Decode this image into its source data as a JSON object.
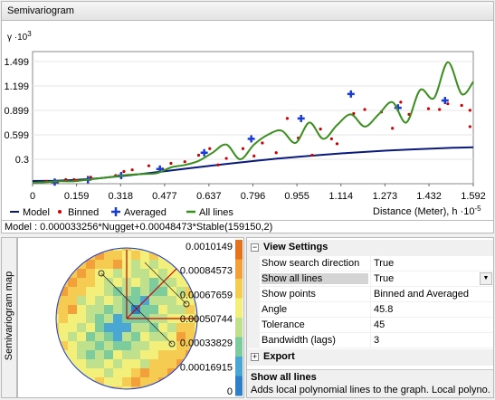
{
  "panel_title": "Semivariogram",
  "model_text": "Model : 0.000033256*Nugget+0.00048473*Stable(159150,2)",
  "map_side_label": "Semivariogram map",
  "colors": {
    "model": "#0a1a7a",
    "binned": "#cc0000",
    "averaged": "#1a3ad6",
    "all_lines": "#3a8f1e"
  },
  "chart_data": {
    "type": "line",
    "ylabel": "γ ·10",
    "ylabel_exp": "3",
    "xlabel": "Distance (Meter), h ·10",
    "xlabel_exp": "-5",
    "x_ticks": [
      "0",
      "0.159",
      "0.318",
      "0.477",
      "0.637",
      "0.796",
      "0.955",
      "1.114",
      "1.273",
      "1.432",
      "1.592"
    ],
    "y_ticks": [
      "0.3",
      "0.599",
      "0.899",
      "1.199",
      "1.499"
    ],
    "xlim": [
      0,
      1.592
    ],
    "ylim": [
      0,
      1.62
    ],
    "series": [
      {
        "name": "Model",
        "type": "line",
        "x": [
          0,
          0.08,
          0.16,
          0.24,
          0.32,
          0.4,
          0.48,
          0.56,
          0.64,
          0.72,
          0.8,
          0.88,
          0.96,
          1.04,
          1.12,
          1.2,
          1.28,
          1.36,
          1.44,
          1.52,
          1.592
        ],
        "y": [
          0.033,
          0.037,
          0.048,
          0.067,
          0.093,
          0.122,
          0.154,
          0.187,
          0.219,
          0.25,
          0.279,
          0.306,
          0.331,
          0.353,
          0.373,
          0.39,
          0.406,
          0.419,
          0.43,
          0.44,
          0.447
        ]
      },
      {
        "name": "Binned",
        "type": "scatter",
        "x": [
          0.05,
          0.09,
          0.12,
          0.15,
          0.16,
          0.21,
          0.3,
          0.33,
          0.36,
          0.42,
          0.47,
          0.5,
          0.55,
          0.6,
          0.64,
          0.67,
          0.7,
          0.76,
          0.8,
          0.83,
          0.88,
          0.92,
          0.96,
          1.01,
          1.04,
          1.08,
          1.1,
          1.16,
          1.2,
          1.26,
          1.3,
          1.33,
          1.36,
          1.43,
          1.47,
          1.5,
          1.55,
          1.58,
          1.58
        ],
        "y": [
          0.03,
          0.02,
          0.05,
          0.05,
          0.04,
          0.08,
          0.1,
          0.15,
          0.17,
          0.22,
          0.18,
          0.25,
          0.27,
          0.35,
          0.43,
          0.23,
          0.31,
          0.43,
          0.34,
          0.5,
          0.38,
          0.8,
          0.56,
          0.35,
          0.67,
          0.55,
          0.49,
          0.86,
          0.91,
          0.88,
          0.68,
          1.0,
          0.85,
          0.92,
          0.91,
          0.98,
          0.96,
          0.9,
          0.7
        ]
      },
      {
        "name": "Averaged",
        "type": "scatter",
        "x": [
          0.08,
          0.2,
          0.32,
          0.46,
          0.62,
          0.79,
          0.97,
          1.15,
          1.32,
          1.49
        ],
        "y": [
          0.02,
          0.05,
          0.1,
          0.18,
          0.38,
          0.55,
          0.8,
          1.1,
          0.93,
          1.02
        ]
      },
      {
        "name": "All lines",
        "type": "line",
        "x": [
          0,
          0.05,
          0.1,
          0.15,
          0.2,
          0.25,
          0.3,
          0.35,
          0.4,
          0.45,
          0.5,
          0.55,
          0.6,
          0.65,
          0.7,
          0.75,
          0.8,
          0.85,
          0.9,
          0.95,
          1.0,
          1.05,
          1.1,
          1.15,
          1.2,
          1.25,
          1.3,
          1.35,
          1.4,
          1.45,
          1.5,
          1.55,
          1.592
        ],
        "y": [
          0.01,
          0.02,
          0.03,
          0.03,
          0.05,
          0.07,
          0.09,
          0.11,
          0.12,
          0.13,
          0.2,
          0.23,
          0.28,
          0.38,
          0.48,
          0.3,
          0.48,
          0.6,
          0.65,
          0.5,
          0.75,
          0.55,
          0.72,
          0.85,
          0.7,
          0.85,
          1.0,
          0.75,
          1.15,
          1.05,
          1.49,
          1.1,
          1.25
        ]
      }
    ],
    "legend": [
      "Model",
      "Binned",
      "Averaged",
      "All lines"
    ]
  },
  "map": {
    "scale_labels": [
      "0.0010149",
      "0.00084573",
      "0.00067659",
      "0.00050744",
      "0.00033829",
      "0.00016915",
      "0"
    ],
    "scale_colors": [
      "#e5721f",
      "#f3a03b",
      "#f6cb52",
      "#f2f07a",
      "#bfe08c",
      "#7ccc9e",
      "#4aa7d4",
      "#2f7fc8"
    ]
  },
  "props": {
    "view_settings": "View Settings",
    "export": "Export",
    "rows": [
      {
        "name": "Show search direction",
        "value": "True"
      },
      {
        "name": "Show all lines",
        "value": "True"
      },
      {
        "name": "Show points",
        "value": "Binned and Averaged"
      },
      {
        "name": "Angle",
        "value": "45.8"
      },
      {
        "name": "Tolerance",
        "value": "45"
      },
      {
        "name": "Bandwidth (lags)",
        "value": "3"
      }
    ],
    "desc_title": "Show all lines",
    "desc_text": "Adds local polynomial lines to the graph. Local polyno..."
  }
}
